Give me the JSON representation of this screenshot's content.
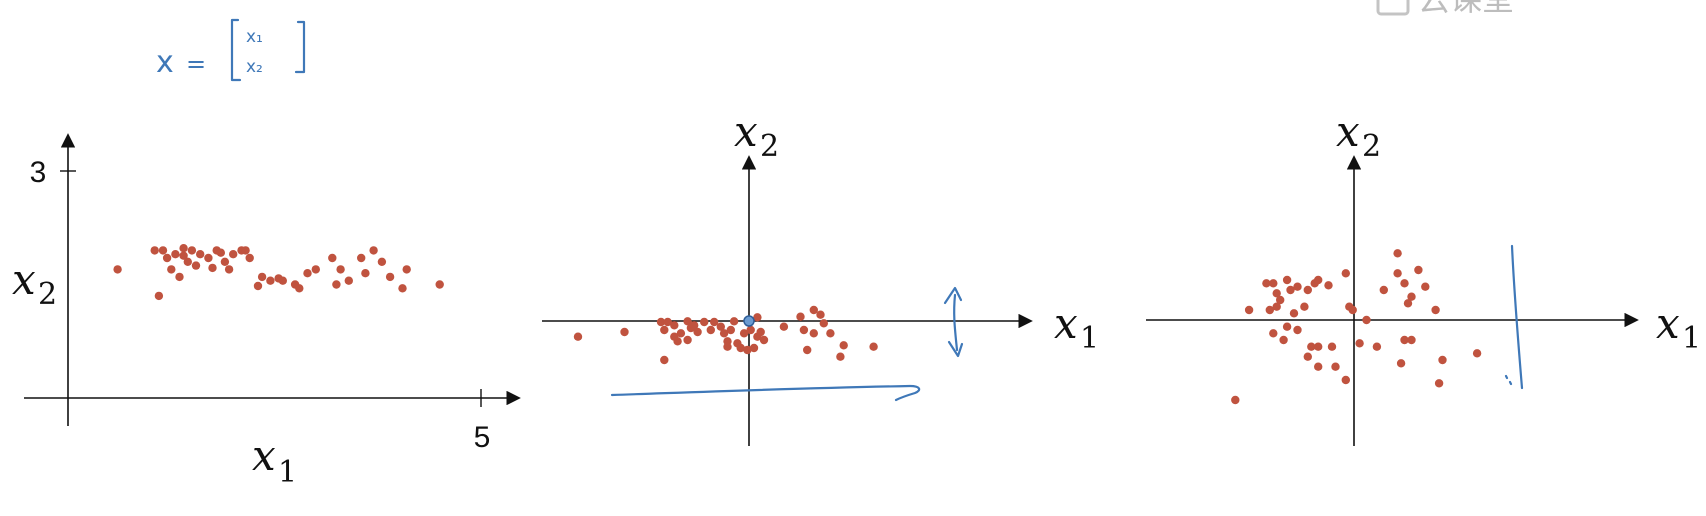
{
  "annotation": {
    "x": "x",
    "eq": "=",
    "top": "x₁",
    "bottom": "x₂"
  },
  "watermark": {
    "label": "云课堂"
  },
  "chart_data": [
    {
      "type": "scatter",
      "color": "#c0533f",
      "xlabel": "x1",
      "ylabel": "x2",
      "xtick": "5",
      "ytick": "3",
      "xlim": [
        0,
        5.2
      ],
      "ylim": [
        0,
        3.3
      ],
      "points": [
        [
          0.6,
          1.7
        ],
        [
          1.05,
          1.95
        ],
        [
          1.15,
          1.95
        ],
        [
          1.2,
          1.85
        ],
        [
          1.3,
          1.9
        ],
        [
          1.25,
          1.7
        ],
        [
          1.4,
          1.88
        ],
        [
          1.45,
          1.8
        ],
        [
          1.5,
          1.95
        ],
        [
          1.6,
          1.9
        ],
        [
          1.7,
          1.85
        ],
        [
          1.8,
          1.95
        ],
        [
          1.9,
          1.8
        ],
        [
          2.0,
          1.9
        ],
        [
          2.1,
          1.95
        ],
        [
          2.2,
          1.85
        ],
        [
          1.35,
          1.6
        ],
        [
          1.55,
          1.75
        ],
        [
          1.75,
          1.72
        ],
        [
          1.95,
          1.7
        ],
        [
          2.35,
          1.6
        ],
        [
          2.45,
          1.55
        ],
        [
          2.6,
          1.55
        ],
        [
          2.75,
          1.5
        ],
        [
          2.8,
          1.45
        ],
        [
          2.9,
          1.65
        ],
        [
          3.0,
          1.7
        ],
        [
          3.2,
          1.85
        ],
        [
          3.3,
          1.7
        ],
        [
          3.4,
          1.55
        ],
        [
          3.55,
          1.85
        ],
        [
          3.7,
          1.95
        ],
        [
          3.8,
          1.8
        ],
        [
          3.9,
          1.6
        ],
        [
          4.05,
          1.45
        ],
        [
          4.1,
          1.7
        ],
        [
          4.5,
          1.5
        ],
        [
          2.3,
          1.48
        ],
        [
          2.15,
          1.95
        ],
        [
          1.1,
          1.35
        ],
        [
          1.4,
          1.98
        ],
        [
          2.55,
          1.58
        ],
        [
          3.25,
          1.5
        ],
        [
          3.6,
          1.65
        ],
        [
          1.85,
          1.92
        ]
      ]
    },
    {
      "type": "scatter",
      "color": "#c0533f",
      "xlabel": "x1",
      "ylabel": "x2",
      "xlim": [
        -2.4,
        3.5
      ],
      "ylim": [
        -1.3,
        2.0
      ],
      "points": [
        [
          -2.25,
          -0.05
        ],
        [
          -1.55,
          0.02
        ],
        [
          -1.0,
          0.17
        ],
        [
          -0.95,
          0.05
        ],
        [
          -0.9,
          0.17
        ],
        [
          -0.8,
          0.12
        ],
        [
          -0.7,
          0.0
        ],
        [
          -0.6,
          0.18
        ],
        [
          -0.55,
          0.08
        ],
        [
          -0.5,
          0.12
        ],
        [
          -0.45,
          0.02
        ],
        [
          -0.35,
          0.17
        ],
        [
          -0.25,
          0.05
        ],
        [
          -0.2,
          0.17
        ],
        [
          -0.1,
          0.1
        ],
        [
          0.05,
          0.05
        ],
        [
          0.1,
          0.18
        ],
        [
          0.25,
          0.0
        ],
        [
          0.35,
          0.05
        ],
        [
          0.45,
          -0.05
        ],
        [
          0.5,
          0.02
        ],
        [
          0.0,
          -0.12
        ],
        [
          0.0,
          -0.2
        ],
        [
          0.15,
          -0.15
        ],
        [
          0.2,
          -0.22
        ],
        [
          0.3,
          -0.25
        ],
        [
          0.4,
          -0.22
        ],
        [
          0.55,
          -0.1
        ],
        [
          -0.75,
          -0.12
        ],
        [
          -0.6,
          -0.1
        ],
        [
          -0.95,
          -0.4
        ],
        [
          -0.8,
          -0.05
        ],
        [
          0.45,
          0.24
        ],
        [
          1.1,
          0.25
        ],
        [
          1.3,
          0.35
        ],
        [
          1.4,
          0.28
        ],
        [
          1.15,
          0.05
        ],
        [
          1.3,
          0.0
        ],
        [
          1.45,
          0.15
        ],
        [
          1.55,
          0.0
        ],
        [
          1.75,
          -0.18
        ],
        [
          1.7,
          -0.35
        ],
        [
          1.2,
          -0.25
        ],
        [
          2.2,
          -0.2
        ],
        [
          0.85,
          0.1
        ],
        [
          -0.05,
          0.0
        ]
      ]
    },
    {
      "type": "scatter",
      "color": "#c0533f",
      "xlabel": "x1",
      "ylabel": "x2",
      "xlim": [
        -2.3,
        3.2
      ],
      "ylim": [
        -1.3,
        2.0
      ],
      "points": [
        [
          -1.3,
          0.35
        ],
        [
          -1.05,
          0.75
        ],
        [
          -0.95,
          0.75
        ],
        [
          -0.9,
          0.6
        ],
        [
          -0.85,
          0.5
        ],
        [
          -0.75,
          0.8
        ],
        [
          -0.7,
          0.65
        ],
        [
          -0.6,
          0.7
        ],
        [
          -0.65,
          0.3
        ],
        [
          -0.5,
          0.4
        ],
        [
          -0.45,
          0.65
        ],
        [
          -0.35,
          0.75
        ],
        [
          -0.3,
          0.8
        ],
        [
          -0.15,
          0.72
        ],
        [
          -1.0,
          0.35
        ],
        [
          -0.9,
          0.4
        ],
        [
          -0.95,
          0.0
        ],
        [
          -0.8,
          -0.1
        ],
        [
          -0.6,
          0.05
        ],
        [
          -0.75,
          0.1
        ],
        [
          0.1,
          0.9
        ],
        [
          0.15,
          0.4
        ],
        [
          0.2,
          0.35
        ],
        [
          0.65,
          0.65
        ],
        [
          0.85,
          1.2
        ],
        [
          0.85,
          0.9
        ],
        [
          0.95,
          0.75
        ],
        [
          1.05,
          0.55
        ],
        [
          1.0,
          0.45
        ],
        [
          1.15,
          0.95
        ],
        [
          1.25,
          0.7
        ],
        [
          1.4,
          0.35
        ],
        [
          -0.4,
          -0.2
        ],
        [
          -0.3,
          -0.2
        ],
        [
          -0.45,
          -0.35
        ],
        [
          -0.3,
          -0.5
        ],
        [
          -0.1,
          -0.2
        ],
        [
          -0.05,
          -0.5
        ],
        [
          0.1,
          -0.7
        ],
        [
          0.55,
          -0.2
        ],
        [
          0.95,
          -0.1
        ],
        [
          0.9,
          -0.45
        ],
        [
          1.05,
          -0.1
        ],
        [
          1.5,
          -0.4
        ],
        [
          1.45,
          -0.75
        ],
        [
          2.0,
          -0.3
        ],
        [
          -1.5,
          -1.0
        ],
        [
          0.3,
          -0.15
        ],
        [
          0.4,
          0.2
        ]
      ]
    }
  ]
}
